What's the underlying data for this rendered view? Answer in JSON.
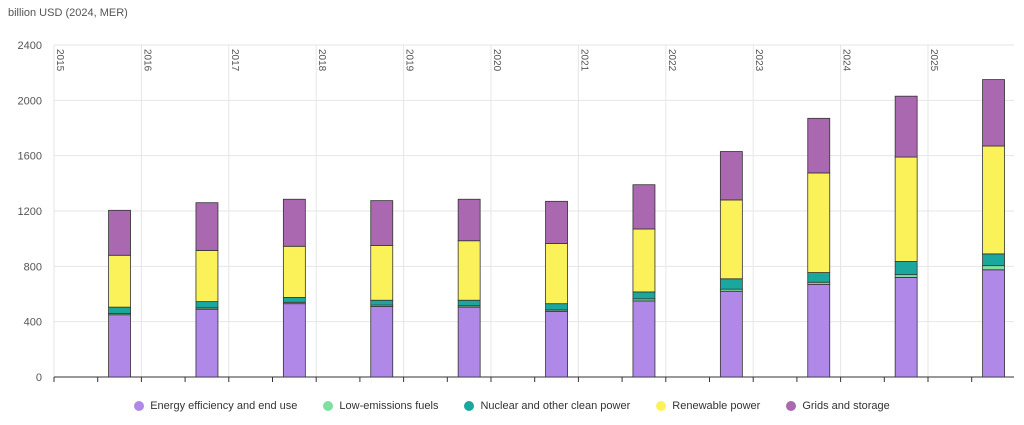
{
  "chart_data": {
    "type": "bar",
    "stacked": true,
    "unit_label": "billion USD (2024, MER)",
    "ylim": [
      0,
      2400
    ],
    "yticks": [
      0,
      400,
      800,
      1200,
      1600,
      2000,
      2400
    ],
    "year_labels": [
      "2015",
      "2016",
      "2017",
      "2018",
      "2019",
      "2020",
      "2021",
      "2022",
      "2023",
      "2024",
      "2025"
    ],
    "grid": true,
    "legend_position": "bottom",
    "series": [
      {
        "name": "Energy efficiency and end use",
        "color": "#b088e8",
        "values": [
          450,
          490,
          530,
          510,
          505,
          475,
          550,
          620,
          670,
          720,
          775
        ]
      },
      {
        "name": "Low-emissions fuels",
        "color": "#7ee0a0",
        "values": [
          10,
          10,
          10,
          10,
          10,
          10,
          15,
          15,
          15,
          20,
          30
        ]
      },
      {
        "name": "Nuclear and other clean power",
        "color": "#1aa89e",
        "values": [
          45,
          45,
          35,
          35,
          40,
          45,
          50,
          75,
          70,
          95,
          85
        ]
      },
      {
        "name": "Renewable power",
        "color": "#fbf25a",
        "values": [
          375,
          370,
          370,
          395,
          430,
          435,
          455,
          570,
          720,
          755,
          780
        ]
      },
      {
        "name": "Grids and storage",
        "color": "#a968b0",
        "values": [
          325,
          345,
          340,
          325,
          300,
          305,
          320,
          350,
          395,
          440,
          480
        ]
      }
    ]
  }
}
